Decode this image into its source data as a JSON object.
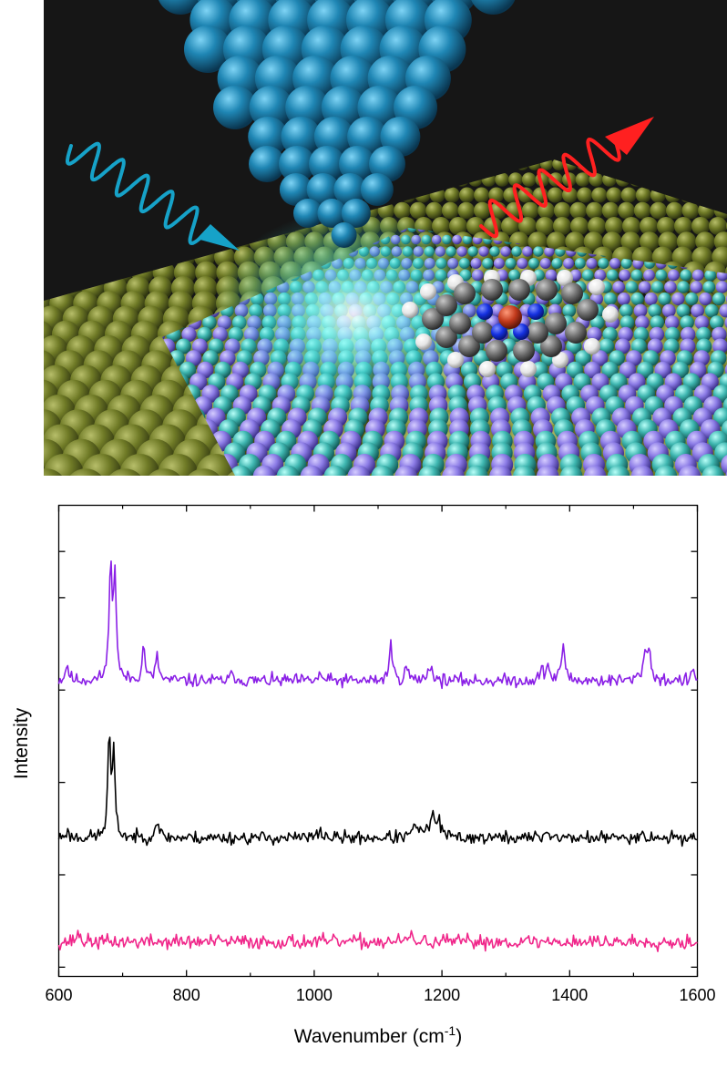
{
  "illustration": {
    "colors": {
      "background": "#161616",
      "tip": "#1f86b4",
      "substrate": "#6f7a26",
      "island_a": "#8c7ce6",
      "island_b": "#3fb7b1",
      "incident_wave": "#16a2c8",
      "scattered_wave": "#ff2020",
      "glow": "#5ff6f0",
      "molecule_carbon": "#6f6f6f",
      "molecule_hydrogen": "#ececec",
      "molecule_nitrogen": "#1430e0",
      "molecule_metal": "#c23a1c"
    }
  },
  "chart_data": {
    "type": "line",
    "title": "",
    "xlabel": "Wavenumber (cm",
    "xlabel_superscript": "-1",
    "xlabel_suffix": ")",
    "ylabel": "Intensity",
    "xlim": [
      600,
      1600
    ],
    "ylim": [
      0,
      10.2
    ],
    "grid": false,
    "y_tick_labels_shown": false,
    "x_ticks": [
      600,
      800,
      1000,
      1200,
      1400,
      1600
    ],
    "x_tick_labels": [
      "600",
      "800",
      "1000",
      "1200",
      "1400",
      "1600"
    ],
    "y_ticks": [
      0.2,
      2.2,
      4.2,
      6.2,
      8.2,
      9.2
    ],
    "series": [
      {
        "color": "#8a1fe6",
        "baseline": 6.4,
        "peaks": [
          [
            613,
            0.35,
            3
          ],
          [
            681,
            2.6,
            2.5
          ],
          [
            688,
            2.25,
            2.5
          ],
          [
            733,
            0.72,
            3
          ],
          [
            754,
            0.5,
            3
          ],
          [
            873,
            0.15,
            4
          ],
          [
            1010,
            0.12,
            4
          ],
          [
            1120,
            0.8,
            3
          ],
          [
            1145,
            0.3,
            3
          ],
          [
            1181,
            0.35,
            4
          ],
          [
            1357,
            0.2,
            4
          ],
          [
            1366,
            0.3,
            3
          ],
          [
            1390,
            0.82,
            3
          ],
          [
            1518,
            0.6,
            4
          ],
          [
            1525,
            0.55,
            3
          ],
          [
            1594,
            0.2,
            3
          ]
        ],
        "noise": 0.1,
        "seed": 11
      },
      {
        "color": "#000000",
        "baseline": 3.0,
        "peaks": [
          [
            612,
            0.12,
            4
          ],
          [
            679,
            2.2,
            2.5
          ],
          [
            686,
            1.7,
            2.5
          ],
          [
            754,
            0.42,
            3
          ],
          [
            1010,
            0.15,
            4
          ],
          [
            1160,
            0.25,
            6
          ],
          [
            1185,
            0.45,
            5
          ],
          [
            1195,
            0.3,
            4
          ],
          [
            1365,
            0.15,
            4
          ],
          [
            1510,
            0.12,
            4
          ]
        ],
        "noise": 0.1,
        "seed": 23
      },
      {
        "color": "#f0268a",
        "baseline": 0.75,
        "peaks": [
          [
            630,
            0.2,
            3
          ],
          [
            1150,
            0.1,
            5
          ]
        ],
        "noise": 0.11,
        "seed": 37
      }
    ]
  }
}
